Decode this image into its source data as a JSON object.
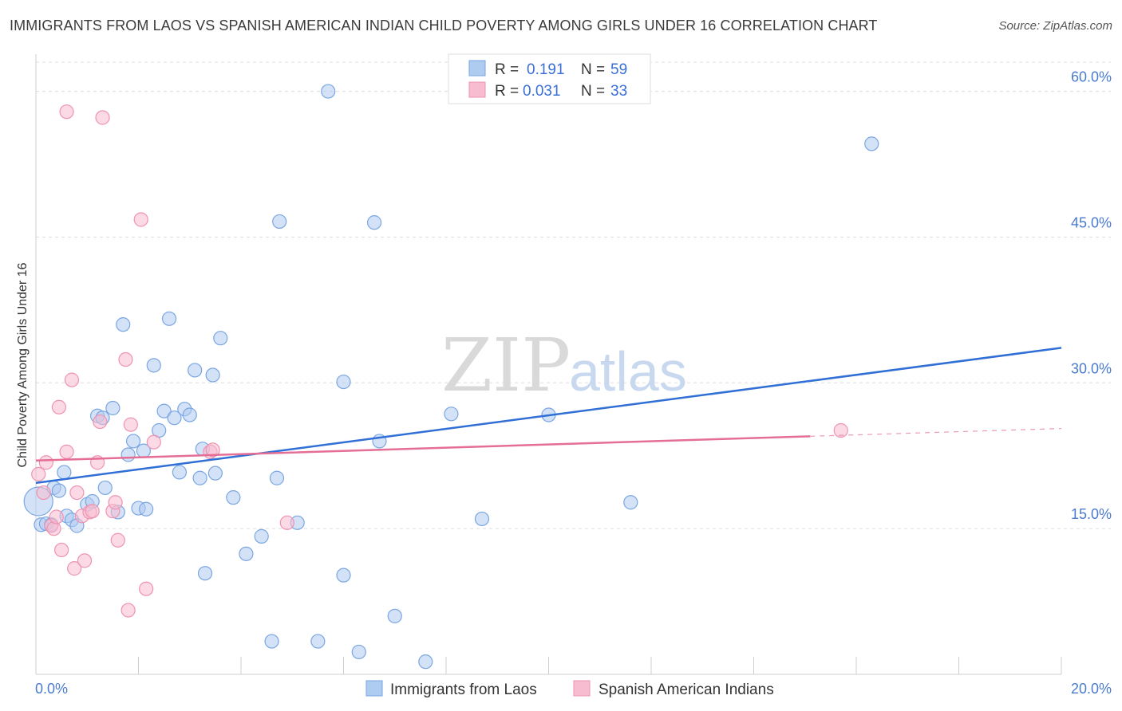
{
  "header": {
    "title": "IMMIGRANTS FROM LAOS VS SPANISH AMERICAN INDIAN CHILD POVERTY AMONG GIRLS UNDER 16 CORRELATION CHART",
    "source": "Source: ZipAtlas.com"
  },
  "watermark": {
    "part1": "ZIP",
    "part2": "atlas"
  },
  "colors": {
    "blue_fill": "#aecbf0",
    "blue_stroke": "#7aa6e3",
    "blue_line": "#2f6fd6",
    "pink_fill": "#f7bccf",
    "pink_stroke": "#ee93b1",
    "pink_line": "#e46e96",
    "grid": "#dddddd",
    "tick_label": "#4a7bd0"
  },
  "legend": {
    "rows": [
      {
        "r_label": "R =",
        "r_value": "0.191",
        "n_label": "N =",
        "n_value": "59"
      },
      {
        "r_label": "R =",
        "r_value": "0.031",
        "n_label": "N =",
        "n_value": "33"
      }
    ]
  },
  "chart_data": {
    "type": "scatter",
    "title": "IMMIGRANTS FROM LAOS VS SPANISH AMERICAN INDIAN CHILD POVERTY AMONG GIRLS UNDER 16 CORRELATION CHART",
    "xlabel": "",
    "ylabel": "Child Poverty Among Girls Under 16",
    "xlim": [
      0,
      20
    ],
    "ylim": [
      0,
      63
    ],
    "x_tick_labels": {
      "min": "0.0%",
      "max": "20.0%"
    },
    "y_ticks": [
      15,
      30,
      45,
      60
    ],
    "y_tick_labels": [
      "15.0%",
      "30.0%",
      "45.0%",
      "60.0%"
    ],
    "grid": true,
    "series": [
      {
        "name": "Immigrants from Laos",
        "color": "blue",
        "r": 0.191,
        "n": 59,
        "trend": {
          "x0": 0,
          "y0": 19.7,
          "x1": 20,
          "y1": 33.6
        },
        "points": [
          [
            0.05,
            17.8
          ],
          [
            0.1,
            15.4
          ],
          [
            0.2,
            15.5
          ],
          [
            0.3,
            15.4
          ],
          [
            0.35,
            19.2
          ],
          [
            0.45,
            18.9
          ],
          [
            0.55,
            20.8
          ],
          [
            0.6,
            16.3
          ],
          [
            0.7,
            15.9
          ],
          [
            0.8,
            15.3
          ],
          [
            1.0,
            17.5
          ],
          [
            1.1,
            17.8
          ],
          [
            1.2,
            26.6
          ],
          [
            1.3,
            26.4
          ],
          [
            1.35,
            19.2
          ],
          [
            1.5,
            27.4
          ],
          [
            1.6,
            16.7
          ],
          [
            1.7,
            36.0
          ],
          [
            1.8,
            22.6
          ],
          [
            1.9,
            24.0
          ],
          [
            2.0,
            17.1
          ],
          [
            2.1,
            23.0
          ],
          [
            2.15,
            17.0
          ],
          [
            2.3,
            31.8
          ],
          [
            2.4,
            25.1
          ],
          [
            2.5,
            27.1
          ],
          [
            2.6,
            36.6
          ],
          [
            2.7,
            26.4
          ],
          [
            2.8,
            20.8
          ],
          [
            2.9,
            27.3
          ],
          [
            3.0,
            26.7
          ],
          [
            3.1,
            31.3
          ],
          [
            3.2,
            20.2
          ],
          [
            3.25,
            23.2
          ],
          [
            3.3,
            10.4
          ],
          [
            3.45,
            30.8
          ],
          [
            3.5,
            20.7
          ],
          [
            3.6,
            34.6
          ],
          [
            3.85,
            18.2
          ],
          [
            4.1,
            12.4
          ],
          [
            4.4,
            14.2
          ],
          [
            4.6,
            3.4
          ],
          [
            4.7,
            20.2
          ],
          [
            4.75,
            46.6
          ],
          [
            5.1,
            15.6
          ],
          [
            5.5,
            3.4
          ],
          [
            5.7,
            60.0
          ],
          [
            6.0,
            30.1
          ],
          [
            6.0,
            10.2
          ],
          [
            6.3,
            2.3
          ],
          [
            6.6,
            46.5
          ],
          [
            6.7,
            24.0
          ],
          [
            7.0,
            6.0
          ],
          [
            7.6,
            1.3
          ],
          [
            8.1,
            26.8
          ],
          [
            8.7,
            16.0
          ],
          [
            10.0,
            26.7
          ],
          [
            11.6,
            17.7
          ],
          [
            16.3,
            54.6
          ]
        ]
      },
      {
        "name": "Spanish American Indians",
        "color": "pink",
        "r": 0.031,
        "n": 33,
        "trend": {
          "x0": 0,
          "y0": 22.0,
          "x1": 15.1,
          "y1": 24.5
        },
        "trend_dashed": {
          "x0": 15.1,
          "y0": 24.5,
          "x1": 20,
          "y1": 25.3
        },
        "points": [
          [
            0.05,
            20.6
          ],
          [
            0.15,
            18.7
          ],
          [
            0.2,
            21.8
          ],
          [
            0.3,
            15.3
          ],
          [
            0.35,
            15.0
          ],
          [
            0.4,
            16.2
          ],
          [
            0.45,
            27.5
          ],
          [
            0.5,
            12.8
          ],
          [
            0.6,
            57.9
          ],
          [
            0.6,
            22.9
          ],
          [
            0.7,
            30.3
          ],
          [
            0.75,
            10.9
          ],
          [
            0.8,
            18.7
          ],
          [
            0.9,
            16.3
          ],
          [
            0.95,
            11.7
          ],
          [
            1.05,
            16.7
          ],
          [
            1.1,
            16.8
          ],
          [
            1.2,
            21.8
          ],
          [
            1.25,
            26.0
          ],
          [
            1.3,
            57.3
          ],
          [
            1.5,
            16.8
          ],
          [
            1.55,
            17.7
          ],
          [
            1.6,
            13.8
          ],
          [
            1.75,
            32.4
          ],
          [
            1.8,
            6.6
          ],
          [
            1.85,
            25.7
          ],
          [
            2.05,
            46.8
          ],
          [
            2.15,
            8.8
          ],
          [
            2.3,
            23.9
          ],
          [
            3.4,
            22.9
          ],
          [
            3.45,
            23.1
          ],
          [
            4.9,
            15.6
          ],
          [
            15.7,
            25.1
          ]
        ]
      }
    ]
  },
  "bottom_legend": {
    "items": [
      {
        "label": "Immigrants from Laos"
      },
      {
        "label": "Spanish American Indians"
      }
    ]
  }
}
